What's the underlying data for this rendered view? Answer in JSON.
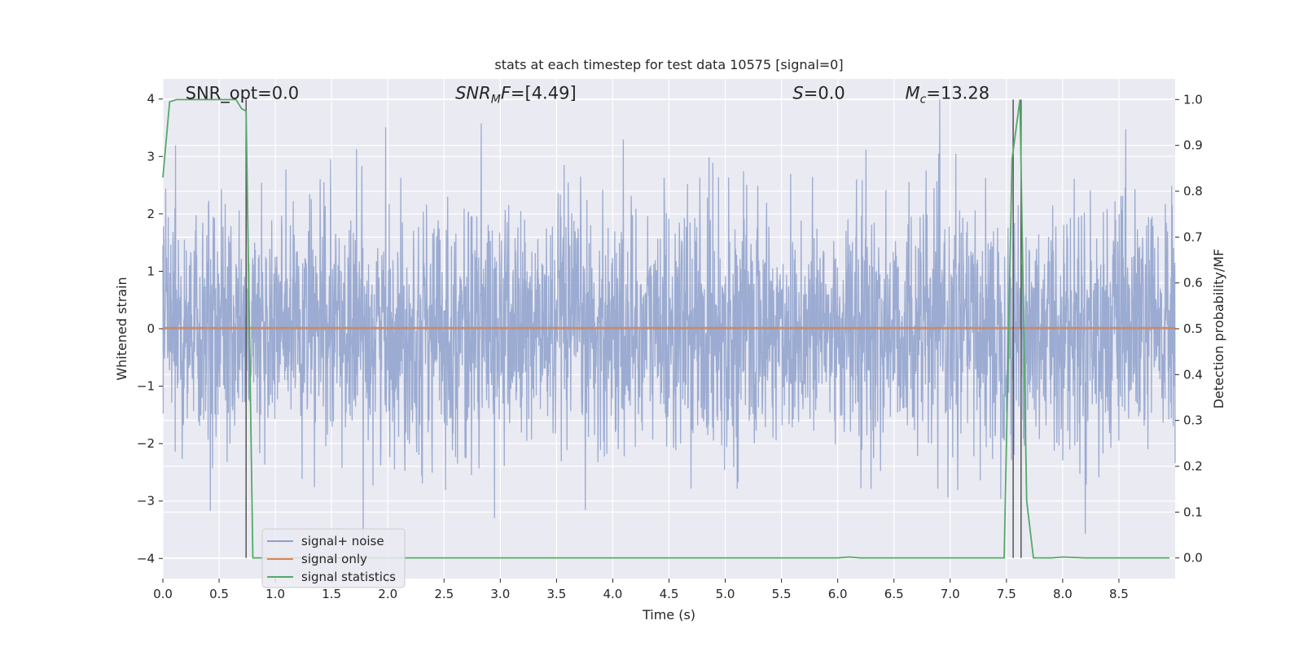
{
  "chart_data": {
    "type": "line",
    "title": "stats at each timestep for test data 10575 [signal=0]",
    "xlabel": "Time (s)",
    "ylabel_left": "Whitened strain",
    "ylabel_right": "Detection probability/MF",
    "xlim": [
      0.0,
      9.0
    ],
    "ylim_left": [
      -4.35,
      4.35
    ],
    "ylim_right": [
      -0.045,
      1.045
    ],
    "x_ticks": [
      "0.0",
      "0.5",
      "1.0",
      "1.5",
      "2.0",
      "2.5",
      "3.0",
      "3.5",
      "4.0",
      "4.5",
      "5.0",
      "5.5",
      "6.0",
      "6.5",
      "7.0",
      "7.5",
      "8.0",
      "8.5"
    ],
    "x_tick_values": [
      0.0,
      0.5,
      1.0,
      1.5,
      2.0,
      2.5,
      3.0,
      3.5,
      4.0,
      4.5,
      5.0,
      5.5,
      6.0,
      6.5,
      7.0,
      7.5,
      8.0,
      8.5
    ],
    "y_left_ticks": [
      "−4",
      "−3",
      "−2",
      "−1",
      "0",
      "1",
      "2",
      "3",
      "4"
    ],
    "y_left_tick_values": [
      -4,
      -3,
      -2,
      -1,
      0,
      1,
      2,
      3,
      4
    ],
    "y_right_ticks": [
      "0.0",
      "0.1",
      "0.2",
      "0.3",
      "0.4",
      "0.5",
      "0.6",
      "0.7",
      "0.8",
      "0.9",
      "1.0"
    ],
    "y_right_tick_values": [
      0.0,
      0.1,
      0.2,
      0.3,
      0.4,
      0.5,
      0.6,
      0.7,
      0.8,
      0.9,
      1.0
    ],
    "grid": true,
    "legend_position": "lower-left",
    "annotations": [
      {
        "prefix": "SNR_opt=",
        "sub": "",
        "value": "0.0",
        "x": 0.2,
        "y": 4.1
      },
      {
        "prefix": "SNR",
        "sub": "M",
        "suffix": "F=",
        "value": "[4.49]",
        "x": 2.6,
        "y": 4.1
      },
      {
        "prefix": "S",
        "sub": "",
        "value": "=0.0",
        "x": 5.6,
        "y": 4.1
      },
      {
        "prefix": "M",
        "sub": "c",
        "value": "=13.28",
        "x": 6.6,
        "y": 4.1
      }
    ],
    "series": [
      {
        "name": "signal+ noise",
        "color": "#8da0cb",
        "kind": "noise",
        "duration": 9.0,
        "sigma": 1.0
      },
      {
        "name": "signal only",
        "color": "#dd8452",
        "kind": "constant",
        "y": 0.0
      },
      {
        "name": "signal statistics",
        "color": "#55a868",
        "axis": "right",
        "x": [
          0.0,
          0.06,
          0.12,
          0.3,
          0.5,
          0.65,
          0.7,
          0.74,
          0.8,
          0.9,
          2.0,
          4.0,
          6.0,
          6.1,
          6.2,
          7.0,
          7.48,
          7.52,
          7.55,
          7.62,
          7.68,
          7.74,
          7.9,
          8.0,
          8.2,
          8.95
        ],
        "y": [
          0.83,
          0.995,
          1.0,
          1.0,
          1.0,
          1.0,
          0.98,
          0.975,
          0.0,
          0.0,
          0.0,
          0.0,
          0.0,
          0.002,
          0.0,
          0.0,
          0.0,
          0.5,
          0.87,
          1.0,
          0.125,
          0.0,
          0.0,
          0.002,
          0.0,
          0.0
        ]
      }
    ],
    "vlines": [
      {
        "x": 0.74,
        "y_from": 0.0,
        "y_to": 1.0,
        "color": "#555555"
      },
      {
        "x": 7.56,
        "y_from": 0.0,
        "y_to": 1.0,
        "color": "#555555"
      },
      {
        "x": 7.63,
        "y_from": 0.0,
        "y_to": 1.0,
        "color": "#555555"
      }
    ],
    "colors": {
      "background": "#eaeaf2",
      "grid": "#ffffff",
      "text": "#262626"
    }
  }
}
